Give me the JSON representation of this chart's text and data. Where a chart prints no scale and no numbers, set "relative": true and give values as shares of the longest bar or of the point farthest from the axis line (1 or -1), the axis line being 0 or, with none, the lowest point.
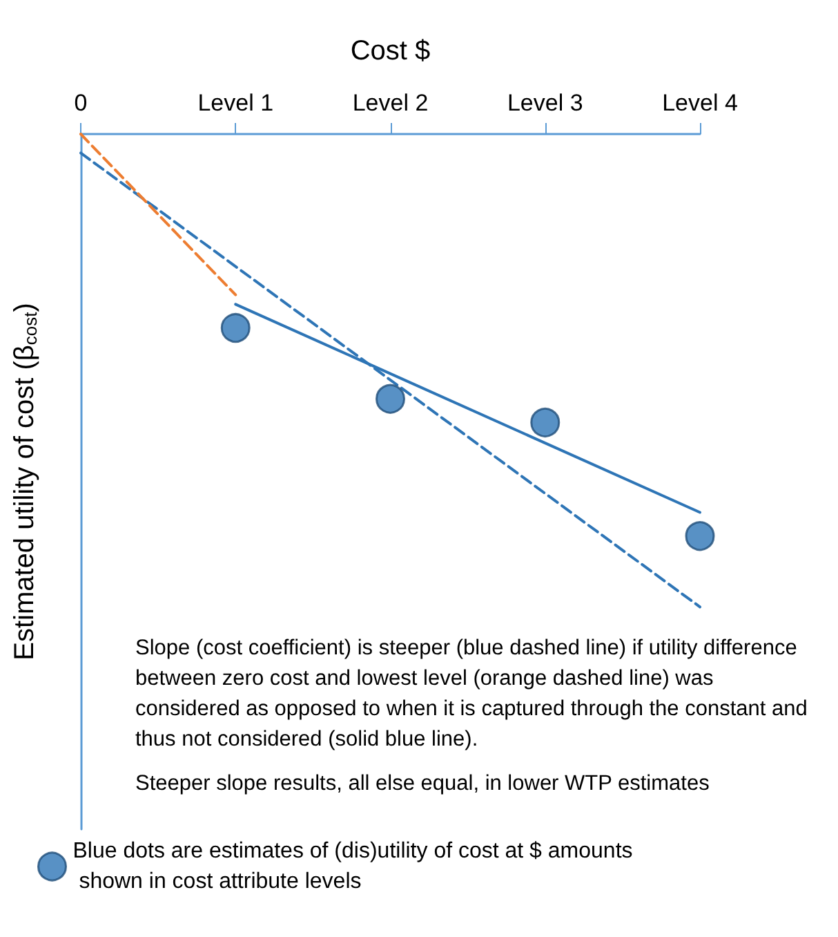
{
  "chart_data": {
    "type": "scatter",
    "relative": true,
    "xlabel": "Cost $",
    "ylabel": "Estimated utility of cost (β$_{cost}$)",
    "categories": [
      "0",
      "Level 1",
      "Level 2",
      "Level 3",
      "Level 4"
    ],
    "series": [
      {
        "name": "Blue dots are estimates of (dis)utility of cost at $ amounts shown in cost attribute levels",
        "color": "#2e75b6",
        "marker": "circle",
        "values": [
          null,
          -0.41,
          -0.56,
          -0.61,
          -0.85
        ]
      },
      {
        "type": "line",
        "color": "#2e75b6",
        "line_style": "solid",
        "x": [
          "Level 1",
          "Level 4"
        ],
        "values": [
          -0.36,
          -0.8
        ]
      },
      {
        "type": "line",
        "color": "#2e75b6",
        "line_style": "dashed",
        "x": [
          "0",
          "Level 4"
        ],
        "values": [
          -0.04,
          -1
        ]
      },
      {
        "type": "line",
        "color": "#ed7d31",
        "line_style": "dashed",
        "x": [
          "0",
          "Level 1"
        ],
        "values": [
          0,
          -0.34
        ]
      }
    ],
    "annotations": [
      "Slope (cost coefficient) is steeper (blue dashed line) if utility difference between zero cost and lowest level (orange dashed line) was considered as opposed to when it is captured through the constant and thus not considered (solid blue line).",
      "Steeper slope results, all else equal, in lower WTP estimates"
    ],
    "legend": "bottom left",
    "tick_labels": "x",
    "grid": false
  }
}
